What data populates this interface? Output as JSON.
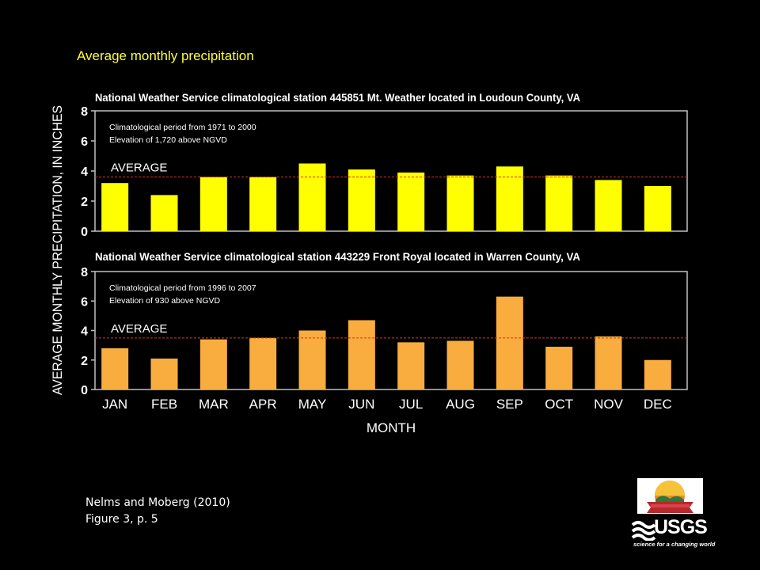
{
  "slide_title": "Average monthly precipitation",
  "citation": {
    "line1": "Nelms and Moberg (2010)",
    "line2": "Figure 3, p. 5"
  },
  "logos": {
    "usgs_word": "USGS",
    "usgs_tagline": "science for a changing world"
  },
  "colors": {
    "background": "#000000",
    "slide_title": "#ffff33",
    "panel_top_bars": "#ffff00",
    "panel_bottom_bars": "#f9ad3e",
    "average_line": "#e03020"
  },
  "chart_data": {
    "type": "bar",
    "ylabel": "AVERAGE MONTHLY PRECIPITATION, IN INCHES",
    "xlabel": "MONTH",
    "categories": [
      "JAN",
      "FEB",
      "MAR",
      "APR",
      "MAY",
      "JUN",
      "JUL",
      "AUG",
      "SEP",
      "OCT",
      "NOV",
      "DEC"
    ],
    "ylim": [
      0,
      8
    ],
    "yticks": [
      0,
      2,
      4,
      6,
      8
    ],
    "grid": false,
    "panels": [
      {
        "title": "National Weather Service climatological station 445851 Mt. Weather located in Loudoun County, VA",
        "note1": "Climatological period from 1971 to 2000",
        "note2": "Elevation of 1,720 above NGVD",
        "average_label": "AVERAGE",
        "average": 3.6,
        "values": [
          3.2,
          2.4,
          3.6,
          3.6,
          4.5,
          4.1,
          3.9,
          3.7,
          4.3,
          3.7,
          3.4,
          3.0
        ],
        "color": "#ffff00"
      },
      {
        "title": "National Weather Service climatological station 443229 Front Royal located in Warren County, VA",
        "note1": "Climatological period from 1996 to 2007",
        "note2": "Elevation of 930 above NGVD",
        "average_label": "AVERAGE",
        "average": 3.5,
        "values": [
          2.8,
          2.1,
          3.4,
          3.5,
          4.0,
          4.7,
          3.2,
          3.3,
          6.3,
          2.9,
          3.6,
          2.0
        ],
        "color": "#f9ad3e"
      }
    ]
  }
}
